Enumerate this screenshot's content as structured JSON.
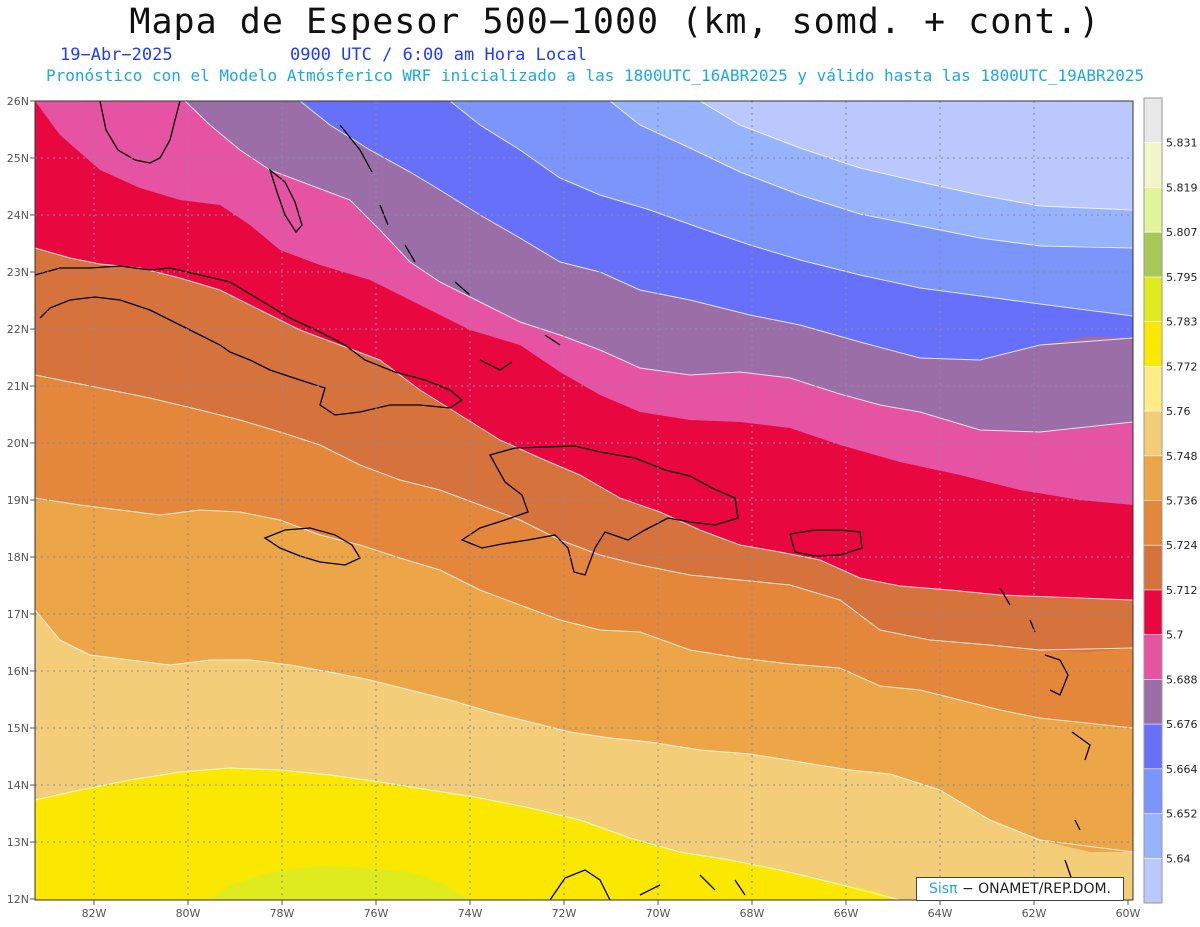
{
  "title": "Mapa de Espesor 500−1000 (km, somd. + cont.)",
  "date": "19−Abr−2025",
  "time": "0900 UTC / 6:00 am Hora Local",
  "model_info": "Pronóstico con el Modelo Atmósferico WRF inicializado a las 1800UTC_16ABR2025 y válido hasta las  1800UTC_19ABR2025",
  "credit": {
    "logo": "Sisπ",
    "org": "− ONAMET/REP.DOM."
  },
  "map": {
    "lat_labels": [
      "26N",
      "25N",
      "24N",
      "23N",
      "22N",
      "21N",
      "20N",
      "19N",
      "18N",
      "17N",
      "16N",
      "15N",
      "14N",
      "13N",
      "12N"
    ],
    "lon_labels": [
      "82W",
      "80W",
      "78W",
      "76W",
      "74W",
      "72W",
      "70W",
      "68W",
      "66W",
      "64W",
      "62W",
      "60W"
    ]
  },
  "colorbar": {
    "labels": [
      "5.831",
      "5.819",
      "5.807",
      "5.795",
      "5.783",
      "5.772",
      "5.76",
      "5.748",
      "5.736",
      "5.724",
      "5.712",
      "5.7",
      "5.688",
      "5.676",
      "5.664",
      "5.652",
      "5.64"
    ],
    "colors": [
      "#e8e8e8",
      "#f2f6c8",
      "#e3f59a",
      "#a8c855",
      "#dfeb1e",
      "#fbe800",
      "#ffec84",
      "#f3cd78",
      "#eda647",
      "#e4873a",
      "#d6733d",
      "#e8083f",
      "#e653a2",
      "#9b6ea8",
      "#6670f8",
      "#7b95fb",
      "#97b3fc",
      "#bac8fe"
    ]
  }
}
